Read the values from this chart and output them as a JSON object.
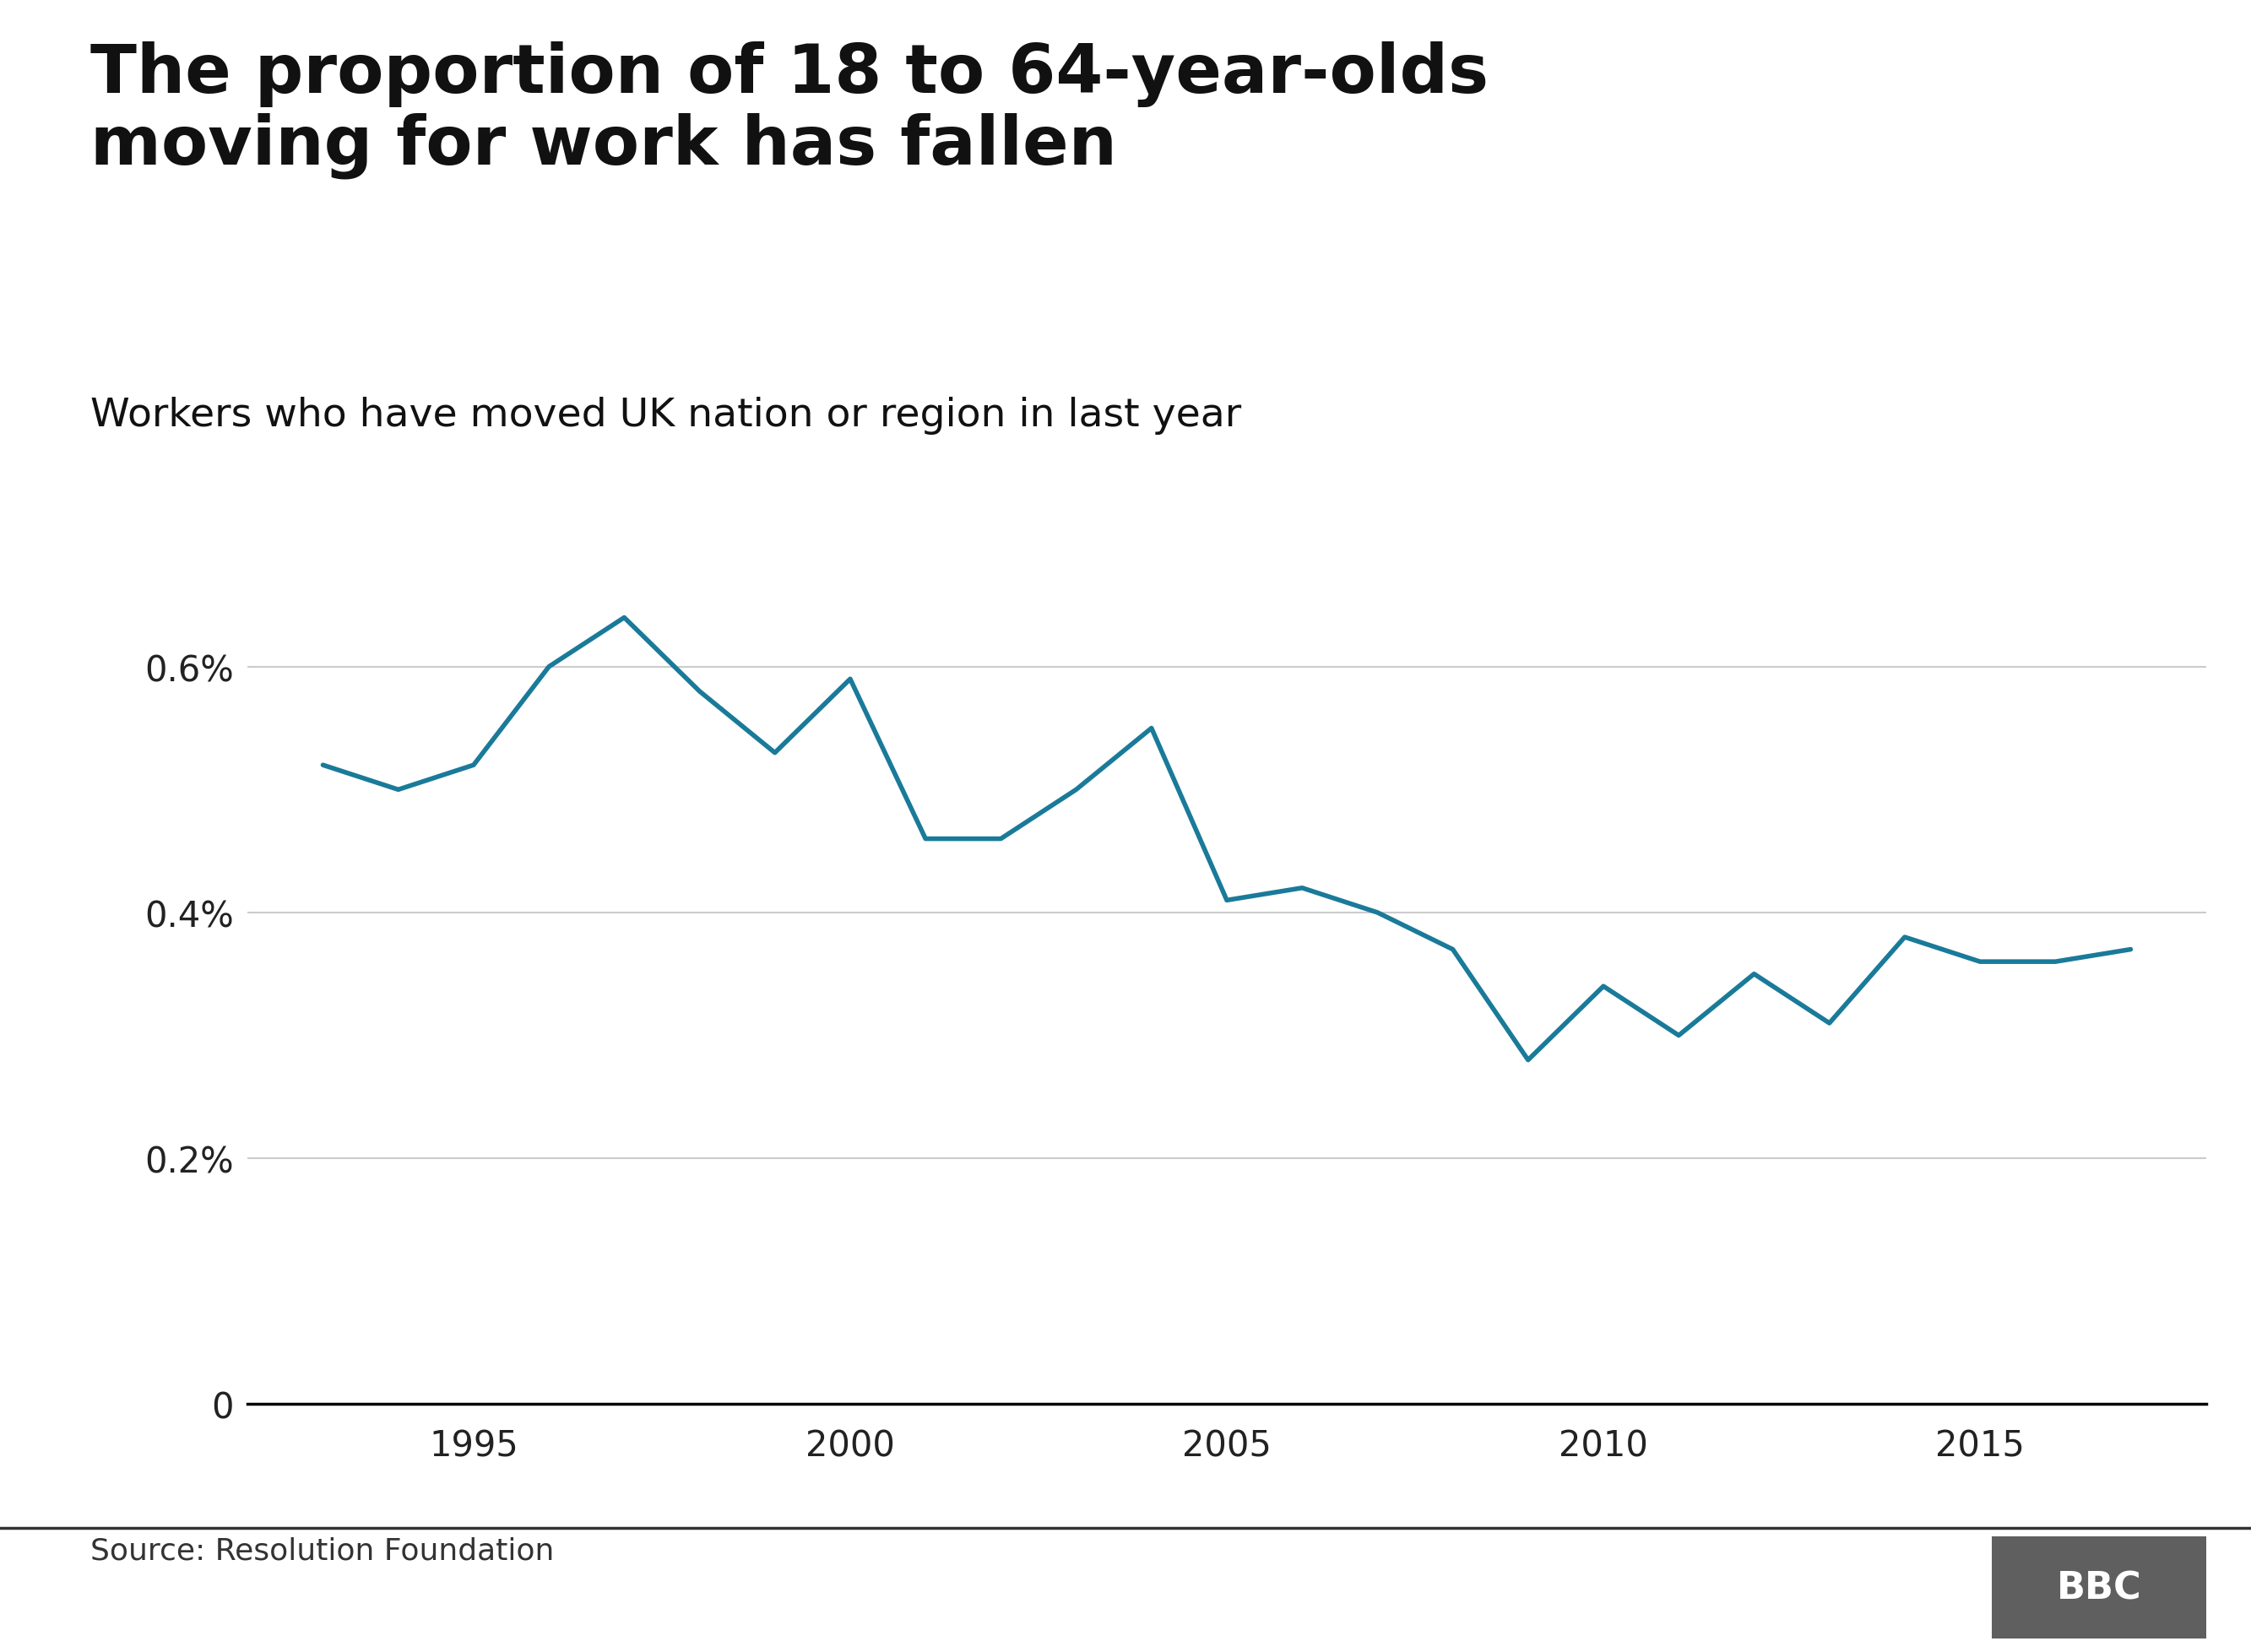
{
  "title": "The proportion of 18 to 64-year-olds\nmoving for work has fallen",
  "subtitle": "Workers who have moved UK nation or region in last year",
  "source": "Source: Resolution Foundation",
  "line_color": "#1a7a99",
  "background_color": "#ffffff",
  "x_values": [
    1993,
    1994,
    1995,
    1996,
    1997,
    1998,
    1999,
    2000,
    2001,
    2002,
    2003,
    2004,
    2005,
    2006,
    2007,
    2008,
    2009,
    2010,
    2011,
    2012,
    2013,
    2014,
    2015,
    2016,
    2017
  ],
  "y_values": [
    0.52,
    0.5,
    0.52,
    0.6,
    0.64,
    0.58,
    0.53,
    0.59,
    0.46,
    0.46,
    0.5,
    0.55,
    0.41,
    0.42,
    0.4,
    0.37,
    0.28,
    0.34,
    0.3,
    0.35,
    0.31,
    0.38,
    0.36,
    0.36,
    0.37
  ],
  "xlim": [
    1992,
    2018
  ],
  "ylim": [
    0,
    0.78
  ],
  "yticks": [
    0,
    0.2,
    0.4,
    0.6
  ],
  "ytick_labels": [
    "0",
    "0.2%",
    "0.4%",
    "0.6%"
  ],
  "xticks": [
    1995,
    2000,
    2005,
    2010,
    2015
  ],
  "grid_color": "#cccccc",
  "axis_color": "#000000",
  "title_fontsize": 58,
  "subtitle_fontsize": 34,
  "tick_fontsize": 30,
  "source_fontsize": 26,
  "line_width": 4.0,
  "bbc_box_color": "#5f5f5f"
}
